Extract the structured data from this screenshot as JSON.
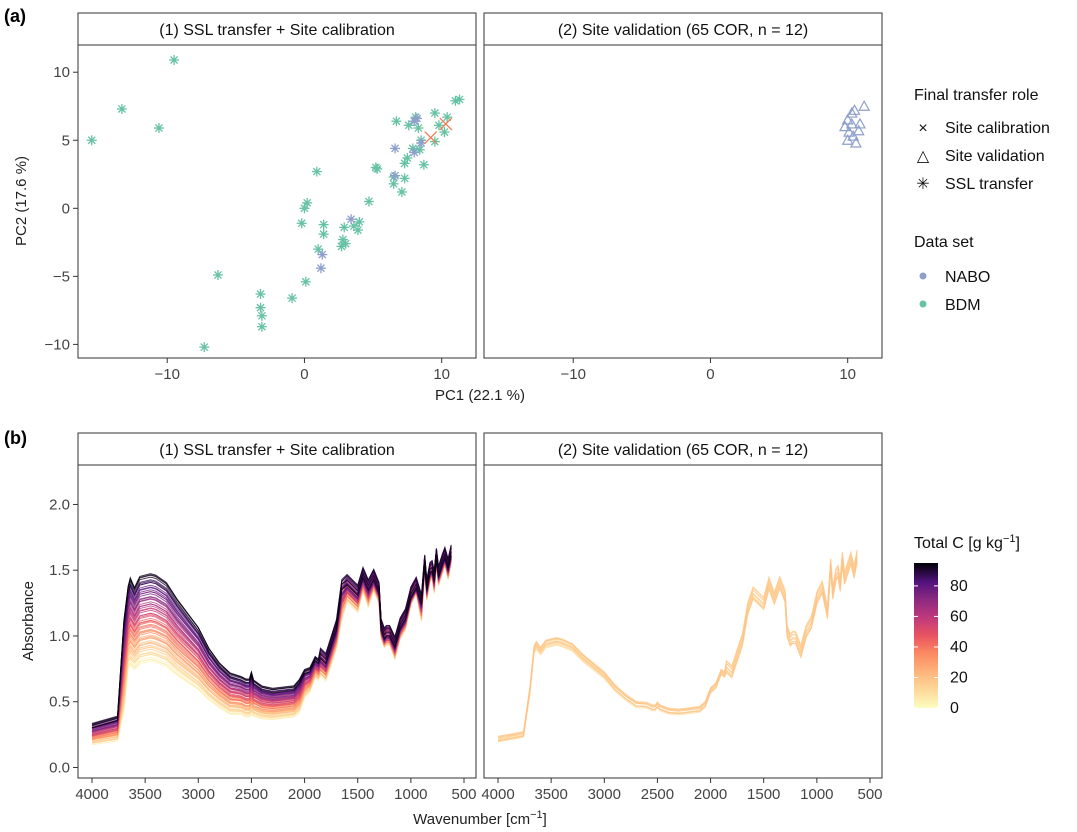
{
  "panel_a": {
    "tag": "(a)",
    "legend_role_title": "Final transfer role",
    "legend_role_items": [
      {
        "label": "Site calibration",
        "glyph": "×"
      },
      {
        "label": "Site validation",
        "glyph": "△"
      },
      {
        "label": "SSL transfer",
        "glyph": "✳"
      }
    ],
    "legend_set_title": "Data set",
    "legend_set_items": [
      {
        "label": "NABO",
        "color": "#8D9FCB"
      },
      {
        "label": "BDM",
        "color": "#66C2A4"
      }
    ]
  },
  "panel_b": {
    "tag": "(b)",
    "colorbar": {
      "title_main": "Total C [g kg",
      "title_sup": "−1",
      "title_end": "]",
      "ticks": [
        "80",
        "60",
        "40",
        "20",
        "0"
      ]
    }
  },
  "colors": {
    "nabo": "#8D9FCB",
    "bdm": "#66C2A4",
    "calibration": "#F07C53",
    "strip_bg": "#ffffff",
    "panel_border": "#333333"
  },
  "chart_data": [
    {
      "type": "scatter",
      "facets": [
        "(1) SSL transfer + Site calibration",
        "(2) Site validation (65 COR, n = 12)"
      ],
      "xlabel": "PC1 (22.1 %)",
      "ylabel": "PC2 (17.6 %)",
      "xlim": [
        -16.5,
        12.5
      ],
      "ylim": [
        -11,
        12
      ],
      "xticks": [
        "−10",
        "0",
        "10"
      ],
      "xtick_values": [
        -10,
        0,
        10
      ],
      "yticks": [
        "10",
        "5",
        "0",
        "−5",
        "−10"
      ],
      "ytick_values": [
        10,
        5,
        0,
        -5,
        -10
      ],
      "grid": false,
      "legend_position": "right",
      "series": [
        {
          "name": "BDM",
          "facet": 0,
          "role": "SSL transfer",
          "points": [
            [
              -15.5,
              5
            ],
            [
              -13.3,
              7.3
            ],
            [
              -10.6,
              5.9
            ],
            [
              -9.5,
              10.9
            ],
            [
              -7.3,
              -10.2
            ],
            [
              -6.3,
              -4.9
            ],
            [
              -3.2,
              -6.3
            ],
            [
              -3.2,
              -7.3
            ],
            [
              -3.1,
              -7.9
            ],
            [
              -3.1,
              -8.7
            ],
            [
              -0.9,
              -6.6
            ],
            [
              0.1,
              -5.4
            ],
            [
              -0.2,
              -1.1
            ],
            [
              0.0,
              0.0
            ],
            [
              0.2,
              0.4
            ],
            [
              0.9,
              2.7
            ],
            [
              1.0,
              -3.0
            ],
            [
              1.4,
              -1.2
            ],
            [
              1.4,
              -1.9
            ],
            [
              2.7,
              -2.8
            ],
            [
              2.8,
              -2.3
            ],
            [
              2.9,
              -1.4
            ],
            [
              3.0,
              -2.6
            ],
            [
              3.6,
              -1.3
            ],
            [
              3.9,
              -1.6
            ],
            [
              4.0,
              -1.0
            ],
            [
              4.7,
              0.5
            ],
            [
              5.2,
              3.0
            ],
            [
              5.3,
              2.9
            ],
            [
              6.5,
              2.3
            ],
            [
              6.5,
              1.8
            ],
            [
              6.7,
              6.4
            ],
            [
              7.1,
              1.2
            ],
            [
              7.3,
              2.2
            ],
            [
              7.3,
              3.3
            ],
            [
              7.5,
              3.7
            ],
            [
              7.6,
              6.1
            ],
            [
              7.9,
              4.4
            ],
            [
              8.1,
              6.7
            ],
            [
              8.3,
              5.9
            ],
            [
              8.4,
              4.3
            ],
            [
              8.5,
              5.0
            ],
            [
              8.7,
              3.2
            ],
            [
              9.5,
              4.9
            ],
            [
              9.5,
              7.0
            ],
            [
              9.8,
              6.1
            ],
            [
              10.2,
              5.6
            ],
            [
              10.4,
              6.7
            ],
            [
              11.0,
              7.9
            ],
            [
              11.3,
              8.0
            ]
          ]
        },
        {
          "name": "NABO",
          "facet": 0,
          "role": "SSL transfer",
          "points": [
            [
              1.2,
              -4.4
            ],
            [
              1.3,
              -3.4
            ],
            [
              3.4,
              -0.8
            ],
            [
              6.6,
              4.4
            ],
            [
              6.6,
              2.4
            ],
            [
              8.0,
              4.1
            ],
            [
              8.0,
              6.4
            ],
            [
              8.2,
              6.6
            ],
            [
              8.5,
              4.8
            ]
          ]
        },
        {
          "name": "NABO",
          "facet": 0,
          "role": "Site calibration",
          "points": [
            [
              9.2,
              5.2
            ],
            [
              10.3,
              6.2
            ]
          ]
        },
        {
          "name": "NABO",
          "facet": 1,
          "role": "Site validation",
          "points": [
            [
              9.8,
              6.0
            ],
            [
              10.0,
              6.5
            ],
            [
              10.1,
              5.6
            ],
            [
              10.3,
              7.0
            ],
            [
              10.4,
              5.3
            ],
            [
              10.0,
              5.0
            ],
            [
              10.6,
              4.8
            ],
            [
              10.3,
              6.2
            ],
            [
              10.8,
              5.7
            ],
            [
              10.9,
              6.2
            ],
            [
              11.2,
              7.5
            ],
            [
              10.5,
              7.2
            ]
          ]
        }
      ]
    },
    {
      "type": "line",
      "facets": [
        "(1) SSL transfer + Site calibration",
        "(2) Site validation (65 COR, n = 12)"
      ],
      "xlabel_main": "Wavenumber [cm",
      "xlabel_sup": "−1",
      "xlabel_end": "]",
      "ylabel": "Absorbance",
      "xlim": [
        4000,
        500
      ],
      "x_reversed": true,
      "ylim": [
        -0.08,
        2.3
      ],
      "xticks": [
        "4000",
        "3500",
        "3000",
        "2500",
        "2000",
        "1500",
        "1000",
        "500"
      ],
      "xtick_values": [
        4000,
        3500,
        3000,
        2500,
        2000,
        1500,
        1000,
        500
      ],
      "yticks": [
        "2.0",
        "1.5",
        "1.0",
        "0.5",
        "0.0"
      ],
      "ytick_values": [
        2.0,
        1.5,
        1.0,
        0.5,
        0.0
      ],
      "grid": false,
      "legend_position": "right",
      "color_scale": "magma, Total C 0–95",
      "profile_x": [
        4000,
        3760,
        3700,
        3660,
        3640,
        3600,
        3550,
        3450,
        3400,
        3300,
        3200,
        3000,
        2900,
        2800,
        2700,
        2600,
        2550,
        2520,
        2500,
        2480,
        2400,
        2300,
        2200,
        2100,
        2050,
        2000,
        1950,
        1900,
        1870,
        1850,
        1800,
        1700,
        1650,
        1600,
        1500,
        1450,
        1400,
        1350,
        1300,
        1280,
        1250,
        1230,
        1200,
        1150,
        1100,
        1050,
        1000,
        950,
        900,
        870,
        850,
        820,
        800,
        780,
        760,
        740,
        700,
        680,
        650,
        620
      ],
      "profile_base": [
        0.24,
        0.28,
        0.7,
        1.0,
        1.04,
        0.99,
        1.05,
        1.07,
        1.06,
        1.02,
        0.93,
        0.78,
        0.67,
        0.59,
        0.53,
        0.52,
        0.5,
        0.5,
        0.53,
        0.5,
        0.47,
        0.46,
        0.47,
        0.48,
        0.52,
        0.62,
        0.65,
        0.75,
        0.73,
        0.79,
        0.75,
        1.0,
        1.25,
        1.35,
        1.27,
        1.42,
        1.31,
        1.42,
        1.32,
        1.05,
        0.98,
        1.0,
        1.0,
        0.9,
        1.05,
        1.12,
        1.3,
        1.38,
        1.2,
        1.55,
        1.34,
        1.48,
        1.5,
        1.4,
        1.6,
        1.45,
        1.55,
        1.6,
        1.5,
        1.62
      ],
      "profile_peak": [
        0.1,
        0.12,
        0.5,
        0.45,
        0.48,
        0.45,
        0.48,
        0.48,
        0.48,
        0.46,
        0.42,
        0.34,
        0.28,
        0.24,
        0.22,
        0.2,
        0.2,
        0.2,
        0.23,
        0.19,
        0.17,
        0.16,
        0.16,
        0.16,
        0.17,
        0.14,
        0.12,
        0.1,
        0.1,
        0.1,
        0.1,
        0.11,
        0.18,
        0.1,
        0.1,
        0.08,
        0.1,
        0.06,
        0.06,
        0.05,
        0.05,
        0.05,
        0.05,
        0.07,
        0.06,
        0.06,
        0.04,
        0.03,
        0.1,
        0.03,
        0.06,
        0.05,
        0.04,
        0.07,
        0.03,
        0.05,
        0.05,
        0.04,
        0.06,
        0.04
      ],
      "series": [
        {
          "facet": 0,
          "count": 60,
          "total_c_range": [
            2,
            95
          ],
          "scale_range": [
            -0.55,
            0.85
          ]
        },
        {
          "facet": 1,
          "count": 12,
          "total_c_range": [
            8,
            20
          ],
          "scale_range": [
            -0.28,
            -0.18
          ]
        }
      ]
    }
  ]
}
